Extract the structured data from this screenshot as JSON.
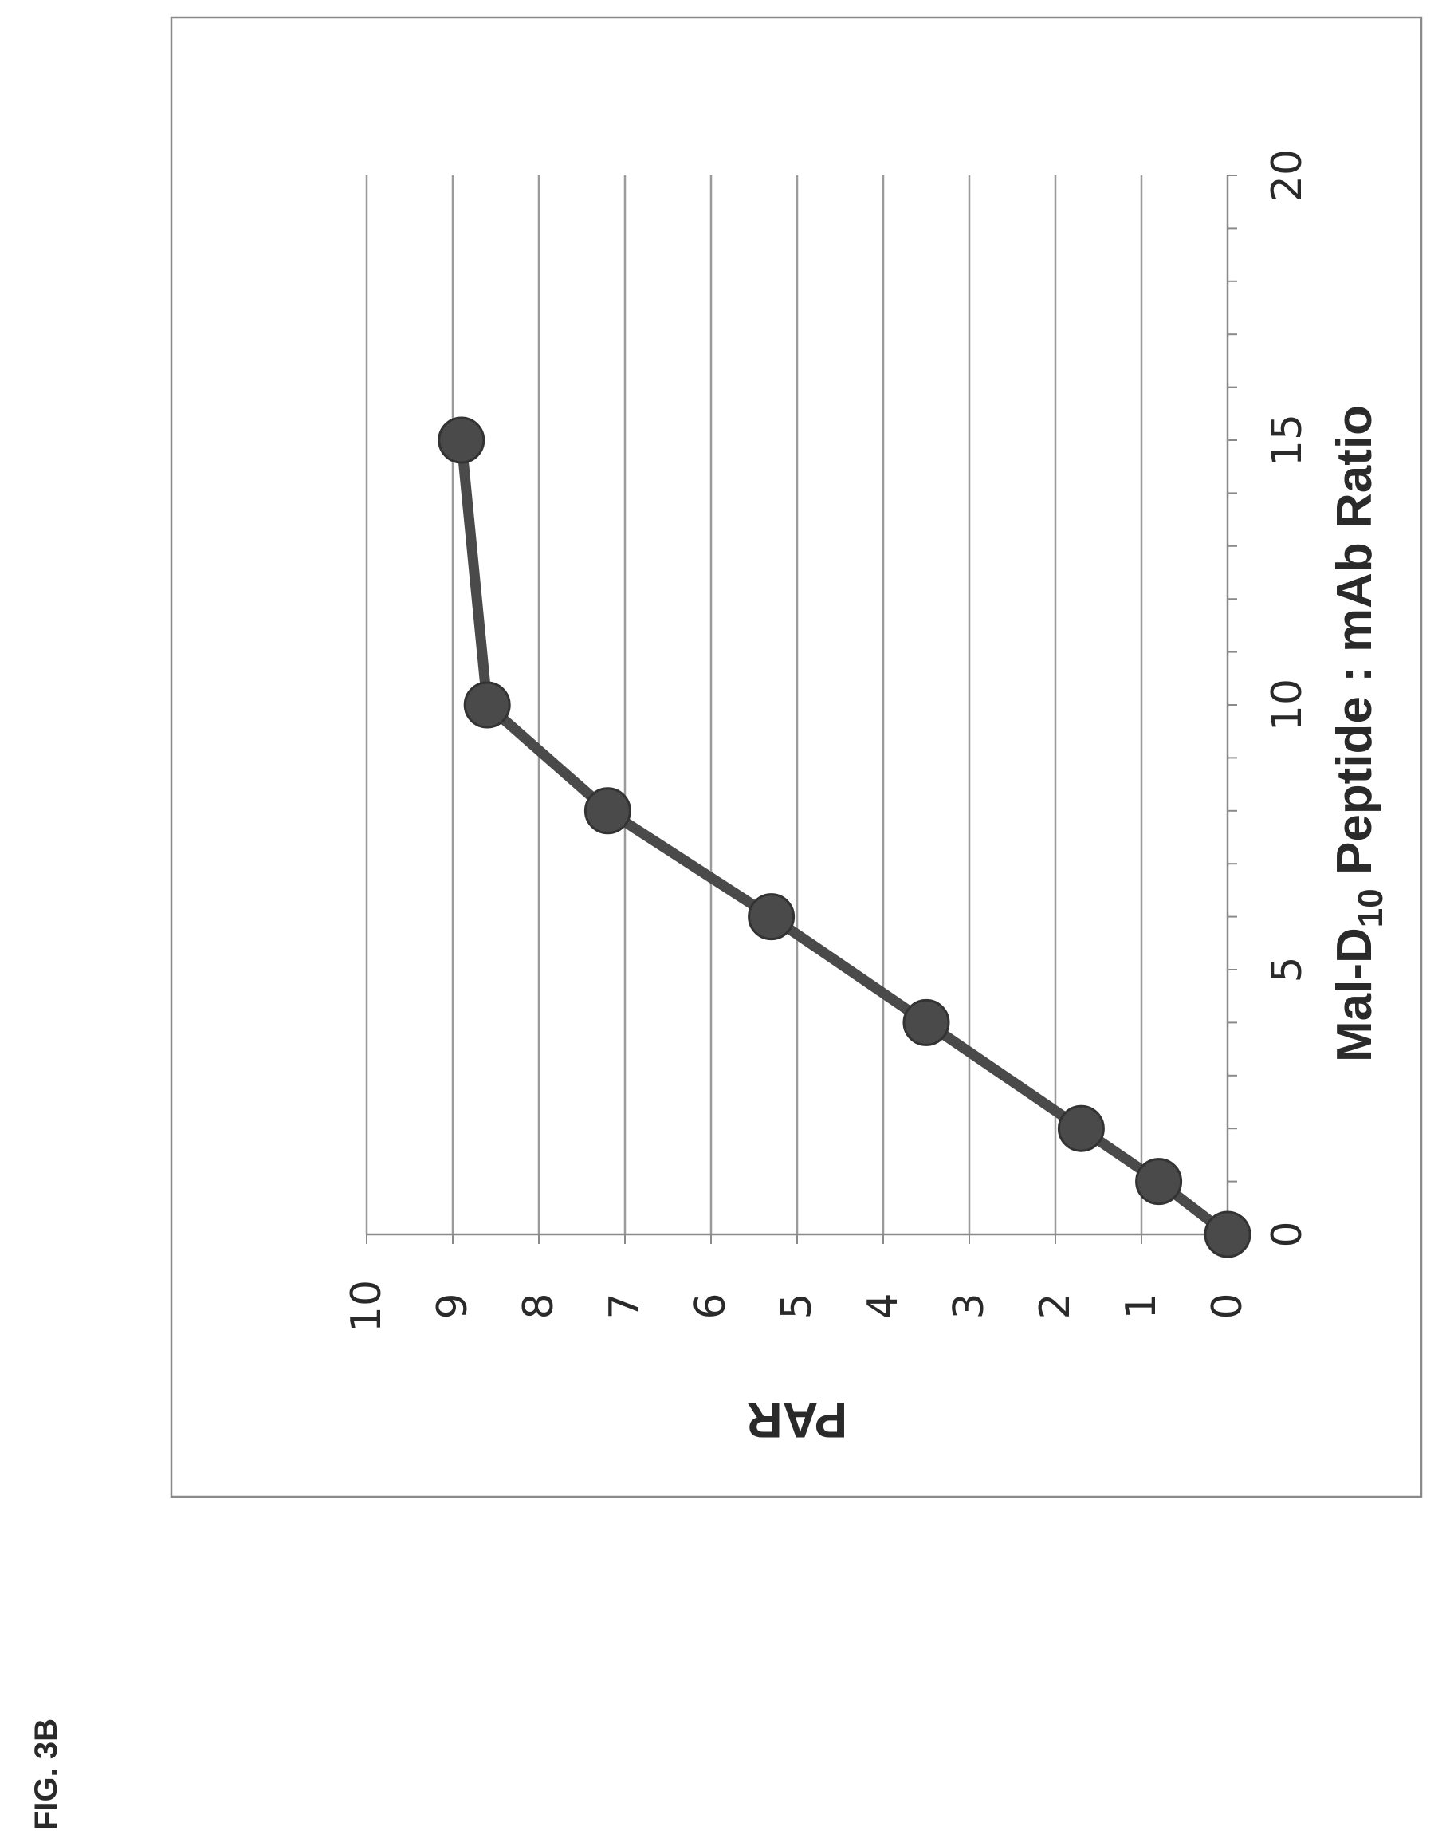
{
  "figure_label": "FIG. 3B",
  "chart_data": {
    "type": "line",
    "xlabel": {
      "main": "Mal-D",
      "subscript": "10",
      "rest": " Peptide : mAb Ratio"
    },
    "ylabel": "PAR",
    "xlim": [
      0,
      20
    ],
    "ylim": [
      0,
      10
    ],
    "x_ticks": [
      "0",
      "5",
      "10",
      "15",
      "20"
    ],
    "y_ticks": [
      "0",
      "1",
      "2",
      "3",
      "4",
      "5",
      "6",
      "7",
      "8",
      "9",
      "10"
    ],
    "grid": "horizontal",
    "orientation": "rotated 90° counter-clockwise on page",
    "colors": {
      "line": "#4a4a4a",
      "marker": "#4a4a4a",
      "grid": "#9a9a9a",
      "frame": "#8a8a8a"
    },
    "series": [
      {
        "x": [
          0,
          1,
          2,
          4,
          6,
          8,
          10,
          15
        ],
        "y": [
          0,
          0.8,
          1.7,
          3.5,
          5.3,
          7.2,
          8.6,
          8.9
        ]
      }
    ]
  }
}
